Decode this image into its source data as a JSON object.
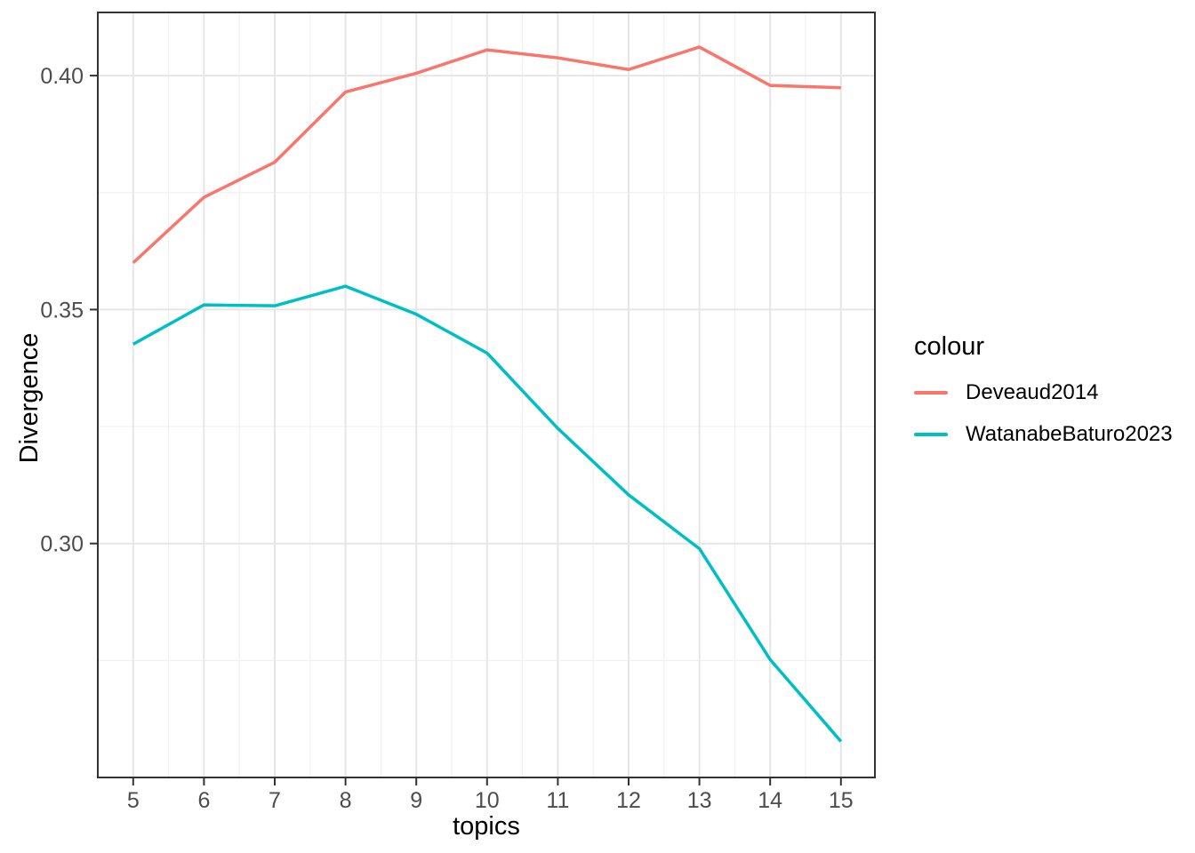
{
  "figure": {
    "background": "#FFFFFF"
  },
  "chart_data": {
    "type": "line",
    "title": "",
    "xlabel": "topics",
    "ylabel": "Divergence",
    "x": [
      5,
      6,
      7,
      8,
      9,
      10,
      11,
      12,
      13,
      14,
      15
    ],
    "series": [
      {
        "name": "Deveaud2014",
        "color": "#F8766D",
        "values": [
          0.36,
          0.374,
          0.3815,
          0.3965,
          0.4005,
          0.4055,
          0.4038,
          0.4013,
          0.4061,
          0.3979,
          0.3974
        ]
      },
      {
        "name": "WatanabeBaturo2023",
        "color": "#00BFC4",
        "values": [
          0.3426,
          0.351,
          0.3508,
          0.355,
          0.349,
          0.3407,
          0.3246,
          0.3104,
          0.2989,
          0.2752,
          0.2577
        ]
      }
    ],
    "xlim": [
      4.5,
      15.48
    ],
    "ylim": [
      0.25,
      0.4135
    ],
    "x_ticks": {
      "values": [
        5,
        6,
        7,
        8,
        9,
        10,
        11,
        12,
        13,
        14,
        15
      ],
      "labels": [
        "5",
        "6",
        "7",
        "8",
        "9",
        "10",
        "11",
        "12",
        "13",
        "14",
        "15"
      ]
    },
    "y_ticks": {
      "values": [
        0.3,
        0.35,
        0.4
      ],
      "labels": [
        "0.30",
        "0.35",
        "0.40"
      ]
    },
    "x_minor": [
      5.5,
      6.5,
      7.5,
      8.5,
      9.5,
      10.5,
      11.5,
      12.5,
      13.5,
      14.5
    ],
    "y_minor": [
      0.275,
      0.325,
      0.375
    ],
    "grid": true,
    "legend_position": "right"
  },
  "legend": {
    "title": "colour",
    "entries": [
      {
        "label": "Deveaud2014",
        "color": "#F8766D"
      },
      {
        "label": "WatanabeBaturo2023",
        "color": "#00BFC4"
      }
    ]
  },
  "styles": {
    "panel_border": "#333333",
    "grid_major": "#E6E6E6",
    "grid_minor": "#F1F1F1",
    "tick_color": "#333333",
    "tick_label_color": "#4D4D4D",
    "title_color": "#000000",
    "line_width": 3.5
  }
}
